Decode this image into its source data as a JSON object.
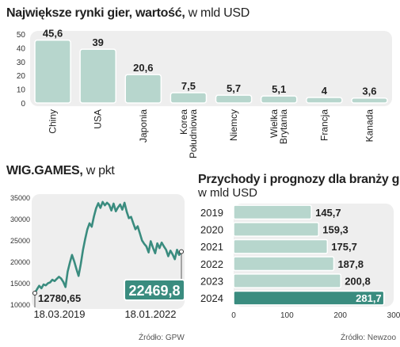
{
  "charts": [
    {
      "id": "markets",
      "type": "bar",
      "title": "Największe rynki gier, wartość,",
      "subtitle": "w mld USD",
      "categories": [
        "Chiny",
        "USA",
        "Japonia",
        "Korea\nPołudniowa",
        "Niemcy",
        "Wielka\nBrytania",
        "Francja",
        "Kanada"
      ],
      "value_labels": [
        "45,6",
        "39",
        "20,6",
        "7,5",
        "5,7",
        "5,1",
        "4",
        "3,6"
      ],
      "values": [
        45.6,
        39,
        20.6,
        7.5,
        5.7,
        5.1,
        4,
        3.6
      ],
      "ylim": [
        0,
        50
      ],
      "yticks": [
        "0",
        "10",
        "20",
        "30",
        "40",
        "50"
      ],
      "bar_color": "#b7d6cd",
      "bg_color": "#eeeeee"
    },
    {
      "id": "wig",
      "type": "line",
      "title": "WIG.GAMES,",
      "subtitle": "w pkt",
      "ylim": [
        10000,
        35000
      ],
      "yticks": [
        "10000",
        "15000",
        "20000",
        "25000",
        "30000",
        "35000"
      ],
      "x_labels": [
        "18.03.2019",
        "18.01.2022"
      ],
      "start_label": "12780,65",
      "end_label": "22469,8",
      "start_value": 12780.65,
      "end_value": 22469.8,
      "values": [
        12780,
        13700,
        14500,
        13900,
        14800,
        14600,
        15100,
        15300,
        15900,
        15600,
        16100,
        16600,
        16200,
        15400,
        14200,
        17800,
        19900,
        21700,
        20200,
        18400,
        16800,
        19600,
        22800,
        25400,
        27700,
        29100,
        28300,
        30700,
        32600,
        33800,
        32700,
        34100,
        33300,
        33900,
        33400,
        32100,
        33700,
        31900,
        32800,
        33500,
        32300,
        33900,
        31800,
        30300,
        30600,
        29100,
        27700,
        28400,
        26800,
        25100,
        24300,
        23700,
        22300,
        24900,
        23400,
        22100,
        24400,
        23300,
        24600,
        23700,
        22900,
        21400,
        22700,
        21800,
        20700,
        22900,
        21700,
        22469.8
      ],
      "line_color": "#3a8c7f",
      "source": "Źródło: GPW"
    },
    {
      "id": "revenue",
      "type": "bar",
      "orientation": "horizontal",
      "title": "Przychody  i prognozy dla branży gier,",
      "subtitle": "w mld USD",
      "categories": [
        "2019",
        "2020",
        "2021",
        "2022",
        "2023",
        "2024"
      ],
      "value_labels": [
        "145,7",
        "159,3",
        "175,7",
        "187,8",
        "200,8",
        "281,7"
      ],
      "values": [
        145.7,
        159.3,
        175.7,
        187.8,
        200.8,
        281.7
      ],
      "xlim": [
        0,
        300
      ],
      "xticks": [
        "0",
        "100",
        "200",
        "300"
      ],
      "bar_color": "#b7d6cd",
      "highlight_color": "#3a8c7f",
      "source": "Źródło: Newzoo"
    }
  ]
}
